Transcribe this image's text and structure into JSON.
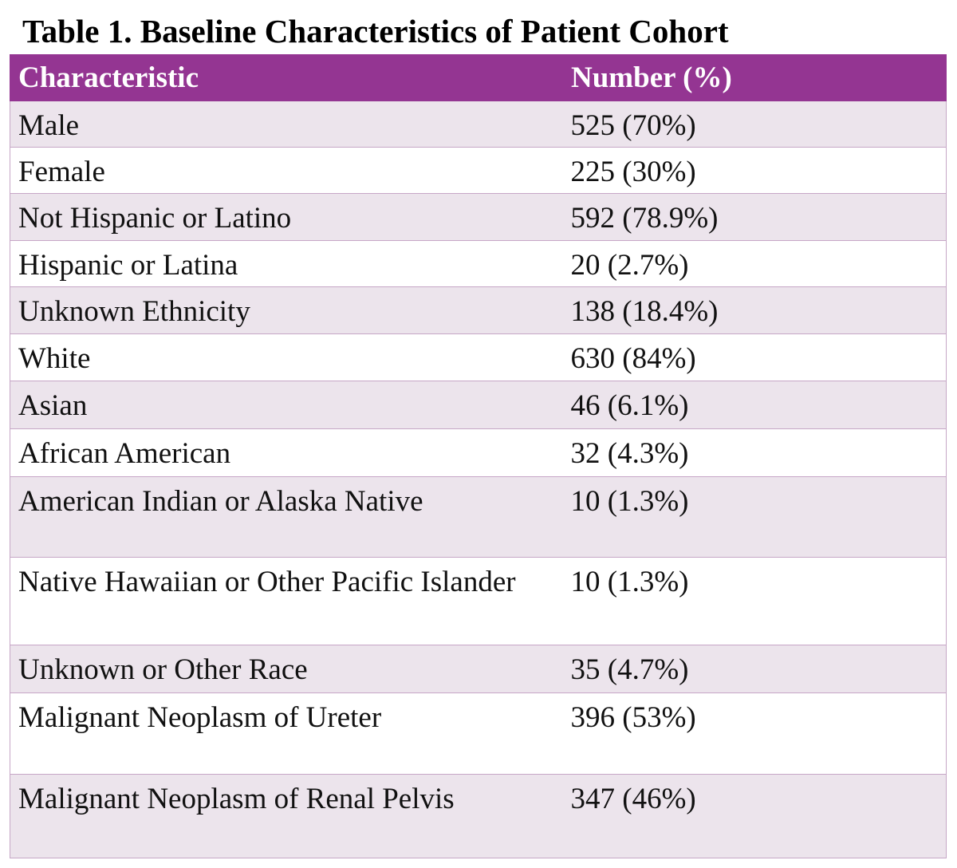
{
  "header": {
    "title": "Table 1. Baseline Characteristics of Patient Cohort"
  },
  "table": {
    "columns": [
      "Characteristic",
      "Number (%)"
    ],
    "rows": [
      [
        "Male",
        "525 (70%)"
      ],
      [
        "Female",
        "225 (30%)"
      ],
      [
        "Not Hispanic or Latino",
        "592 (78.9%)"
      ],
      [
        "Hispanic or Latina",
        "20 (2.7%)"
      ],
      [
        "Unknown Ethnicity",
        "138 (18.4%)"
      ],
      [
        "White",
        "630 (84%)"
      ],
      [
        "Asian",
        "46 (6.1%)"
      ],
      [
        "African American",
        "32 (4.3%)"
      ],
      [
        "American Indian or Alaska Native",
        "10 (1.3%)"
      ],
      [
        "Native Hawaiian or Other Pacific Islander",
        "10 (1.3%)"
      ],
      [
        "Unknown or Other Race",
        "35 (4.7%)"
      ],
      [
        "Malignant Neoplasm of Ureter",
        "396 (53%)"
      ],
      [
        "Malignant Neoplasm of Renal Pelvis",
        "347 (46%)"
      ]
    ]
  }
}
